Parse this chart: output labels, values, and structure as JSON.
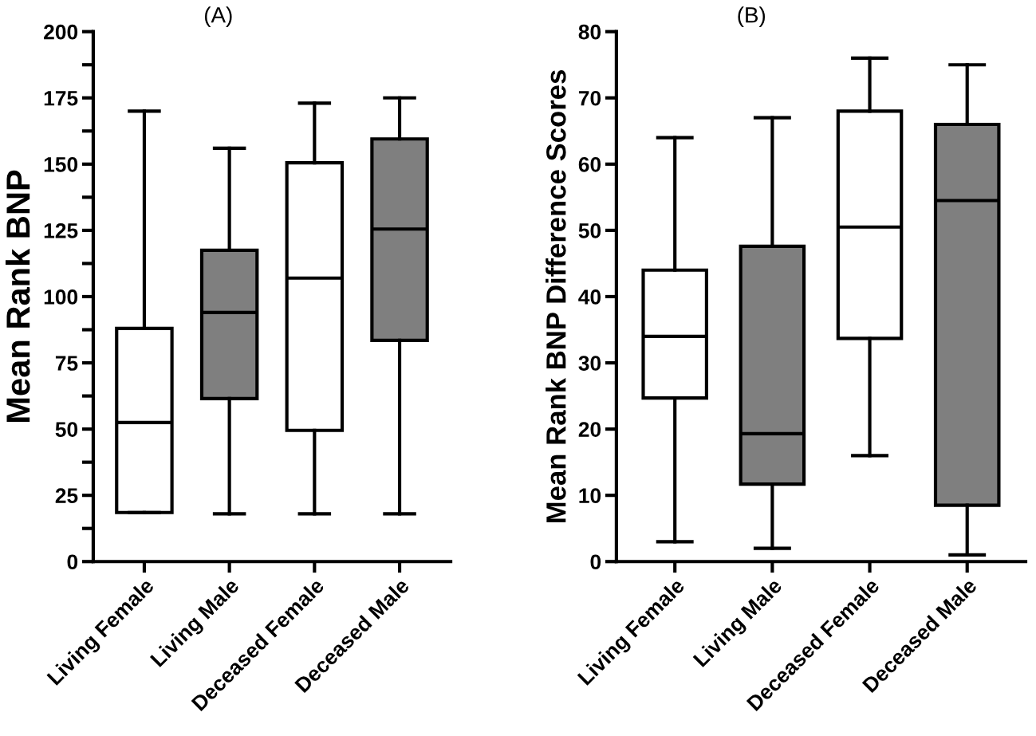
{
  "chart_data": [
    {
      "type": "box",
      "title": "(A)",
      "ylabel": "Mean Rank BNP",
      "categories": [
        "Living Female",
        "Living Male",
        "Deceased Female",
        "Deceased Male"
      ],
      "colors": [
        "#ffffff",
        "#7f7f7f",
        "#ffffff",
        "#7f7f7f"
      ],
      "boxes": [
        {
          "low": 18.5,
          "q1": 18.5,
          "median": 52.5,
          "q3": 88,
          "high": 170
        },
        {
          "low": 18,
          "q1": 61.5,
          "median": 94,
          "q3": 117.5,
          "high": 156
        },
        {
          "low": 18,
          "q1": 49.5,
          "median": 107,
          "q3": 150.5,
          "high": 173
        },
        {
          "low": 18,
          "q1": 83.5,
          "median": 125.5,
          "q3": 159.5,
          "high": 175
        }
      ],
      "ylim": [
        0,
        200
      ],
      "yticks": [
        0,
        {
          "value": 12.5,
          "label": null
        },
        25,
        {
          "value": 37.5,
          "label": null
        },
        50,
        {
          "value": 62.5,
          "label": null
        },
        75,
        {
          "value": 87.5,
          "label": null
        },
        100,
        {
          "value": 112.5,
          "label": null
        },
        125,
        {
          "value": 137.5,
          "label": null
        },
        150,
        {
          "value": 162.5,
          "label": null
        },
        175,
        {
          "value": 187.5,
          "label": null
        },
        200
      ],
      "grid": false,
      "legend": false
    },
    {
      "type": "box",
      "title": "(B)",
      "ylabel": "Mean Rank BNP Difference Scores",
      "categories": [
        "Living Female",
        "Living Male",
        "Deceased Female",
        "Deceased Male"
      ],
      "colors": [
        "#ffffff",
        "#7f7f7f",
        "#ffffff",
        "#7f7f7f"
      ],
      "boxes": [
        {
          "low": 3,
          "q1": 24.7,
          "median": 34,
          "q3": 44,
          "high": 64
        },
        {
          "low": 2,
          "q1": 11.7,
          "median": 19.3,
          "q3": 47.6,
          "high": 67
        },
        {
          "low": 16,
          "q1": 33.7,
          "median": 50.5,
          "q3": 68,
          "high": 76
        },
        {
          "low": 1,
          "q1": 8.5,
          "median": 54.5,
          "q3": 66,
          "high": 75
        }
      ],
      "ylim": [
        0,
        80
      ],
      "yticks": [
        0,
        10,
        20,
        30,
        40,
        50,
        60,
        70,
        80
      ],
      "grid": false,
      "legend": false
    }
  ]
}
